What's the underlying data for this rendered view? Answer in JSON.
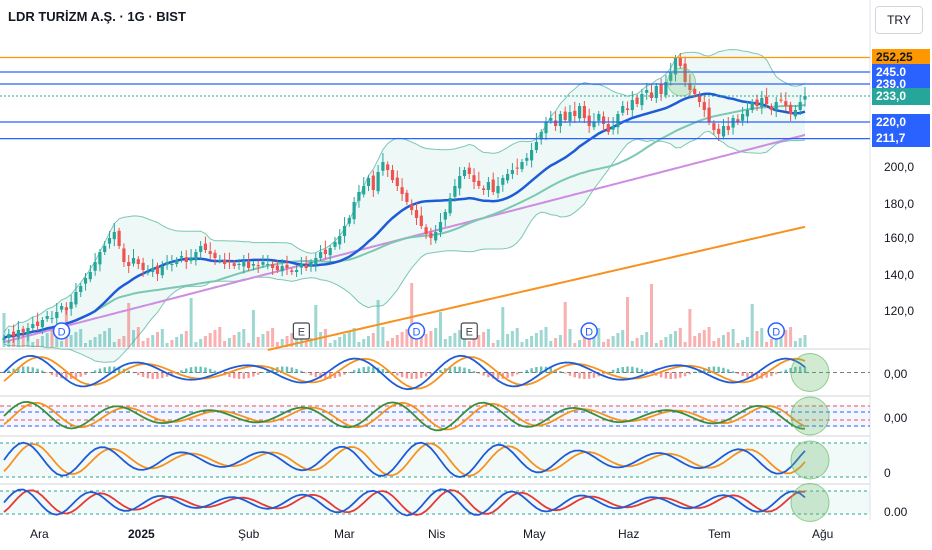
{
  "header": {
    "title": "LDR TURİZM A.Ş. · 1G · BIST",
    "currency": "TRY"
  },
  "colors": {
    "up": "#26a69a",
    "down": "#ef5350",
    "blueLevel": "#2962ff",
    "orangeLevel": "#ff9800",
    "ma20": "#1e5bd6",
    "ma50": "#7cc7b4",
    "ma100": "#cd8de0",
    "ma200": "#f7921e",
    "band": "#26a69a"
  },
  "price_labels": [
    {
      "text": "252,25",
      "value": 252.25,
      "color": "#ff9800",
      "textColor": "#131722"
    },
    {
      "text": "245,0",
      "value": 245.0,
      "color": "#2962ff",
      "textColor": "#ffffff"
    },
    {
      "text": "239,0",
      "value": 239.0,
      "color": "#2962ff",
      "textColor": "#ffffff"
    },
    {
      "text": "233,0",
      "value": 233.0,
      "color": "#26a69a",
      "textColor": "#ffffff"
    },
    {
      "text": "220,0",
      "value": 220.0,
      "color": "#2962ff",
      "textColor": "#ffffff"
    },
    {
      "text": "211,7",
      "value": 211.7,
      "color": "#2962ff",
      "textColor": "#ffffff"
    }
  ],
  "y_axis_labels": [
    "200,0",
    "180,0",
    "160,0",
    "140,0",
    "120,0"
  ],
  "indicator_labels": [
    "0,00",
    "0,00",
    "0",
    "0.00"
  ],
  "x_axis_labels": [
    {
      "text": "Ara",
      "bold": false
    },
    {
      "text": "2025",
      "bold": true
    },
    {
      "text": "Şub",
      "bold": false
    },
    {
      "text": "Mar",
      "bold": false
    },
    {
      "text": "Nis",
      "bold": false
    },
    {
      "text": "May",
      "bold": false
    },
    {
      "text": "Haz",
      "bold": false
    },
    {
      "text": "Tem",
      "bold": false
    },
    {
      "text": "Ağu",
      "bold": false
    }
  ],
  "event_markers": [
    {
      "type": "D",
      "index": 12
    },
    {
      "type": "E",
      "index": 62
    },
    {
      "type": "D",
      "index": 86
    },
    {
      "type": "E",
      "index": 97
    },
    {
      "type": "D",
      "index": 122
    },
    {
      "type": "D",
      "index": 161
    }
  ],
  "chart_data": {
    "type": "candlestick",
    "symbol": "LDR TURİZM A.Ş.",
    "interval": "1G",
    "exchange": "BIST",
    "ylim": [
      107,
      264
    ],
    "horizontal_levels": [
      252.25,
      245.0,
      239.0,
      220.0,
      211.7
    ],
    "last_price": 233.0,
    "close": [
      112,
      114,
      113,
      116,
      115,
      117,
      119,
      118,
      121,
      123,
      122,
      125,
      128,
      126,
      130,
      135,
      138,
      142,
      145,
      150,
      155,
      158,
      162,
      165,
      158,
      150,
      148,
      152,
      149,
      146,
      145,
      147,
      144,
      148,
      150,
      149,
      151,
      153,
      150,
      152,
      155,
      158,
      156,
      154,
      152,
      151,
      149,
      150,
      148,
      149,
      150,
      147,
      149,
      148,
      150,
      149,
      147,
      146,
      148,
      147,
      145,
      146,
      149,
      147,
      150,
      152,
      155,
      154,
      157,
      160,
      163,
      168,
      172,
      180,
      185,
      188,
      192,
      186,
      195,
      200,
      196,
      191,
      188,
      184,
      180,
      176,
      172,
      168,
      164,
      162,
      165,
      170,
      175,
      182,
      188,
      193,
      196,
      194,
      190,
      188,
      186,
      190,
      185,
      188,
      192,
      194,
      196,
      197,
      200,
      202,
      206,
      210,
      215,
      220,
      222,
      218,
      224,
      221,
      225,
      223,
      228,
      222,
      218,
      220,
      224,
      219,
      215,
      218,
      224,
      228,
      226,
      231,
      229,
      234,
      236,
      232,
      238,
      234,
      240,
      245,
      252,
      248,
      240,
      236,
      234,
      230,
      226,
      220,
      216,
      214,
      218,
      216,
      222,
      220,
      224,
      226,
      230,
      228,
      232,
      229,
      226,
      230,
      231,
      228,
      224,
      226,
      230,
      233
    ]
  }
}
